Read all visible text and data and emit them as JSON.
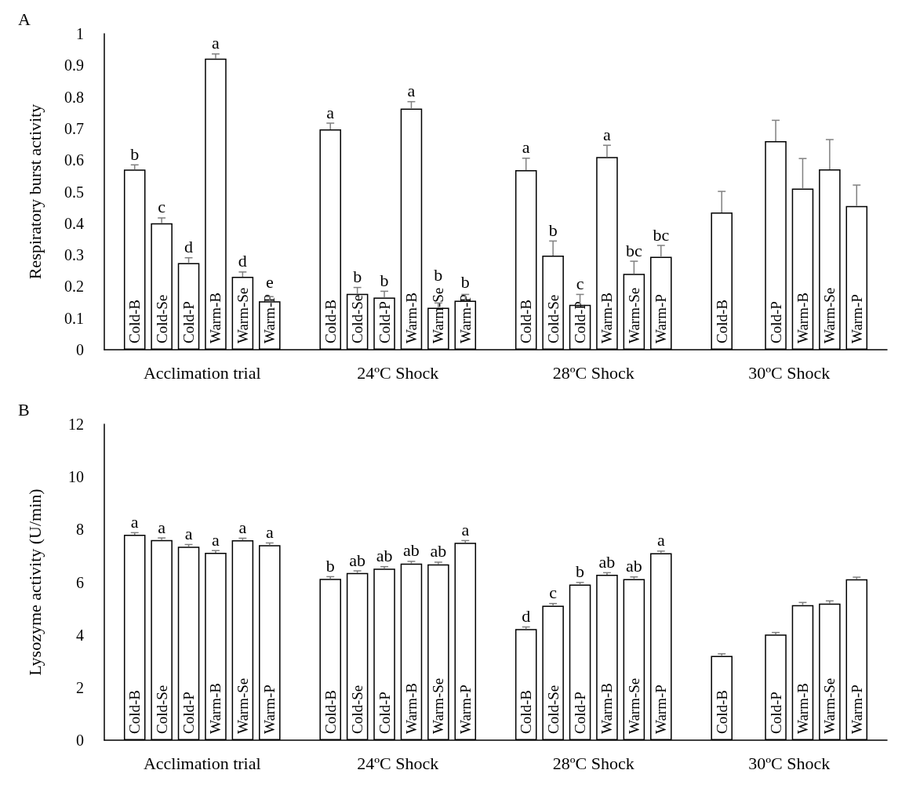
{
  "chart_data": [
    {
      "type": "bar",
      "title": "A",
      "ylabel": "Respiratory burst activity",
      "categories": [
        "Acclimation trial",
        "24ºC Shock",
        "28ºC Shock",
        "30ºC Shock"
      ],
      "ylim": [
        0,
        1
      ],
      "yticks": [
        0,
        0.1,
        0.2,
        0.3,
        0.4,
        0.5,
        0.6,
        0.7,
        0.8,
        0.9,
        1
      ],
      "grid": false,
      "legend": false,
      "series": [
        {
          "name": "Cold-B",
          "color": "#ffffff",
          "values": [
            0.57,
            0.697,
            0.568,
            0.434
          ],
          "errors": [
            0.015,
            0.02,
            0.038,
            0.067
          ],
          "value_labels": [
            "b",
            "a",
            "a",
            null
          ]
        },
        {
          "name": "Cold-Se",
          "color": "#ffffff",
          "values": [
            0.4,
            0.177,
            0.298,
            null
          ],
          "errors": [
            0.017,
            0.02,
            0.046,
            null
          ],
          "value_labels": [
            "c",
            "b",
            "b",
            null
          ]
        },
        {
          "name": "Cold-P",
          "color": "#ffffff",
          "values": [
            0.274,
            0.165,
            0.142,
            0.66
          ],
          "errors": [
            0.017,
            0.02,
            0.033,
            0.066
          ],
          "value_labels": [
            "d",
            "b",
            "c",
            null
          ]
        },
        {
          "name": "Warm-B",
          "color": "#ffffff",
          "values": [
            0.921,
            0.763,
            0.61,
            0.51
          ],
          "errors": [
            0.015,
            0.022,
            0.037,
            0.095
          ],
          "value_labels": [
            "a",
            "a",
            "a",
            null
          ]
        },
        {
          "name": "Warm-Se",
          "color": "#ffffff",
          "values": [
            0.231,
            0.133,
            0.24,
            0.571
          ],
          "errors": [
            0.015,
            0.015,
            0.04,
            0.094
          ],
          "value_labels": [
            "d",
            "b",
            "bc",
            null
          ]
        },
        {
          "name": "Warm-P",
          "color": "#ffffff",
          "values": [
            0.153,
            0.155,
            0.294,
            0.455
          ],
          "errors": [
            0.015,
            0.02,
            0.036,
            0.066
          ],
          "value_labels": [
            "e",
            "b",
            "bc",
            null
          ]
        }
      ]
    },
    {
      "type": "bar",
      "title": "B",
      "ylabel": "Lysozyme activity (U/min)",
      "categories": [
        "Acclimation trial",
        "24ºC Shock",
        "28ºC Shock",
        "30ºC Shock"
      ],
      "ylim": [
        0,
        12
      ],
      "yticks": [
        0,
        2,
        4,
        6,
        8,
        10,
        12
      ],
      "grid": false,
      "legend": false,
      "series": [
        {
          "name": "Cold-B",
          "color": "#ffffff",
          "values": [
            7.8,
            6.13,
            4.22,
            3.2
          ],
          "errors": [
            0.08,
            0.08,
            0.08,
            0.08
          ],
          "value_labels": [
            "a",
            "b",
            "d",
            null
          ]
        },
        {
          "name": "Cold-Se",
          "color": "#ffffff",
          "values": [
            7.6,
            6.35,
            5.11,
            null
          ],
          "errors": [
            0.08,
            0.08,
            0.08,
            null
          ],
          "value_labels": [
            "a",
            "ab",
            "c",
            null
          ]
        },
        {
          "name": "Cold-P",
          "color": "#ffffff",
          "values": [
            7.35,
            6.51,
            5.91,
            4.01
          ],
          "errors": [
            0.08,
            0.08,
            0.08,
            0.08
          ],
          "value_labels": [
            "a",
            "ab",
            "b",
            null
          ]
        },
        {
          "name": "Warm-B",
          "color": "#ffffff",
          "values": [
            7.12,
            6.71,
            6.28,
            5.13
          ],
          "errors": [
            0.08,
            0.08,
            0.08,
            0.1
          ],
          "value_labels": [
            "a",
            "ab",
            "ab",
            null
          ]
        },
        {
          "name": "Warm-Se",
          "color": "#ffffff",
          "values": [
            7.59,
            6.68,
            6.12,
            5.19
          ],
          "errors": [
            0.08,
            0.08,
            0.08,
            0.1
          ],
          "value_labels": [
            "a",
            "ab",
            "ab",
            null
          ]
        },
        {
          "name": "Warm-P",
          "color": "#ffffff",
          "values": [
            7.41,
            7.5,
            7.1,
            6.11
          ],
          "errors": [
            0.08,
            0.08,
            0.08,
            0.08
          ],
          "value_labels": [
            "a",
            "a",
            "a",
            null
          ]
        }
      ]
    }
  ]
}
